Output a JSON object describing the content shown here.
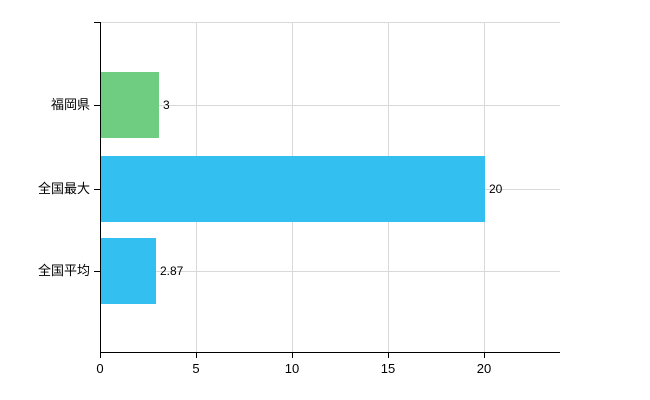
{
  "chart_data": {
    "type": "bar",
    "orientation": "horizontal",
    "title": "",
    "xlabel": "",
    "ylabel": "",
    "categories": [
      "福岡県",
      "全国最大",
      "全国平均"
    ],
    "values": [
      3,
      20,
      2.87
    ],
    "value_labels": [
      "3",
      "20",
      "2.87"
    ],
    "bar_colors": [
      "#6ecd80",
      "#33bfef",
      "#33bfef"
    ],
    "x_ticks": [
      0,
      5,
      10,
      15,
      20
    ],
    "x_tick_labels": [
      "0",
      "5",
      "10",
      "15",
      "20"
    ],
    "xlim": [
      0,
      24
    ],
    "grid": true,
    "legend": "none",
    "colors": {
      "grid": "#d9d9d9",
      "axis": "#000000",
      "text": "#000000",
      "background": "#ffffff"
    }
  }
}
